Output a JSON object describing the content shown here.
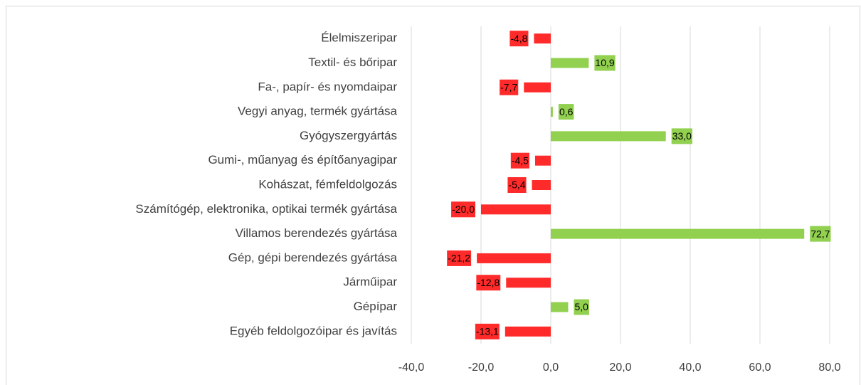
{
  "chart_data": {
    "type": "bar",
    "orientation": "horizontal",
    "categories": [
      "Élelmiszeripar",
      "Textil- és bőripar",
      "Fa-, papír- és nyomdaipar",
      "Vegyi anyag, termék gyártása",
      "Gyógyszergyártás",
      "Gumi-, műanyag és építőanyagipar",
      "Kohászat, fémfeldolgozás",
      "Számítógép, elektronika, optikai termék gyártása",
      "Villamos berendezés gyártása",
      "Gép, gépi berendezés gyártása",
      "Járműipar",
      "Gépípar",
      "Egyéb feldolgozóipar és javítás"
    ],
    "values": [
      -4.8,
      10.9,
      -7.7,
      0.6,
      33.0,
      -4.5,
      -5.4,
      -20.0,
      72.7,
      -21.2,
      -12.8,
      5.0,
      -13.1
    ],
    "value_labels": [
      "-4,8",
      "10,9",
      "-7,7",
      "0,6",
      "33,0",
      "-4,5",
      "-5,4",
      "-20,0",
      "72,7",
      "-21,2",
      "-12,8",
      "5,0",
      "-13,1"
    ],
    "positive_color": "#92d050",
    "negative_color": "#ff2a2a",
    "xlim": [
      -40,
      80
    ],
    "xticks": [
      {
        "value": -40,
        "label": "-40,0"
      },
      {
        "value": -20,
        "label": "-20,0"
      },
      {
        "value": 0,
        "label": "0,0"
      },
      {
        "value": 20,
        "label": "20,0"
      },
      {
        "value": 40,
        "label": "40,0"
      },
      {
        "value": 60,
        "label": "60,0"
      },
      {
        "value": 80,
        "label": "80,0"
      }
    ],
    "grid": true
  }
}
